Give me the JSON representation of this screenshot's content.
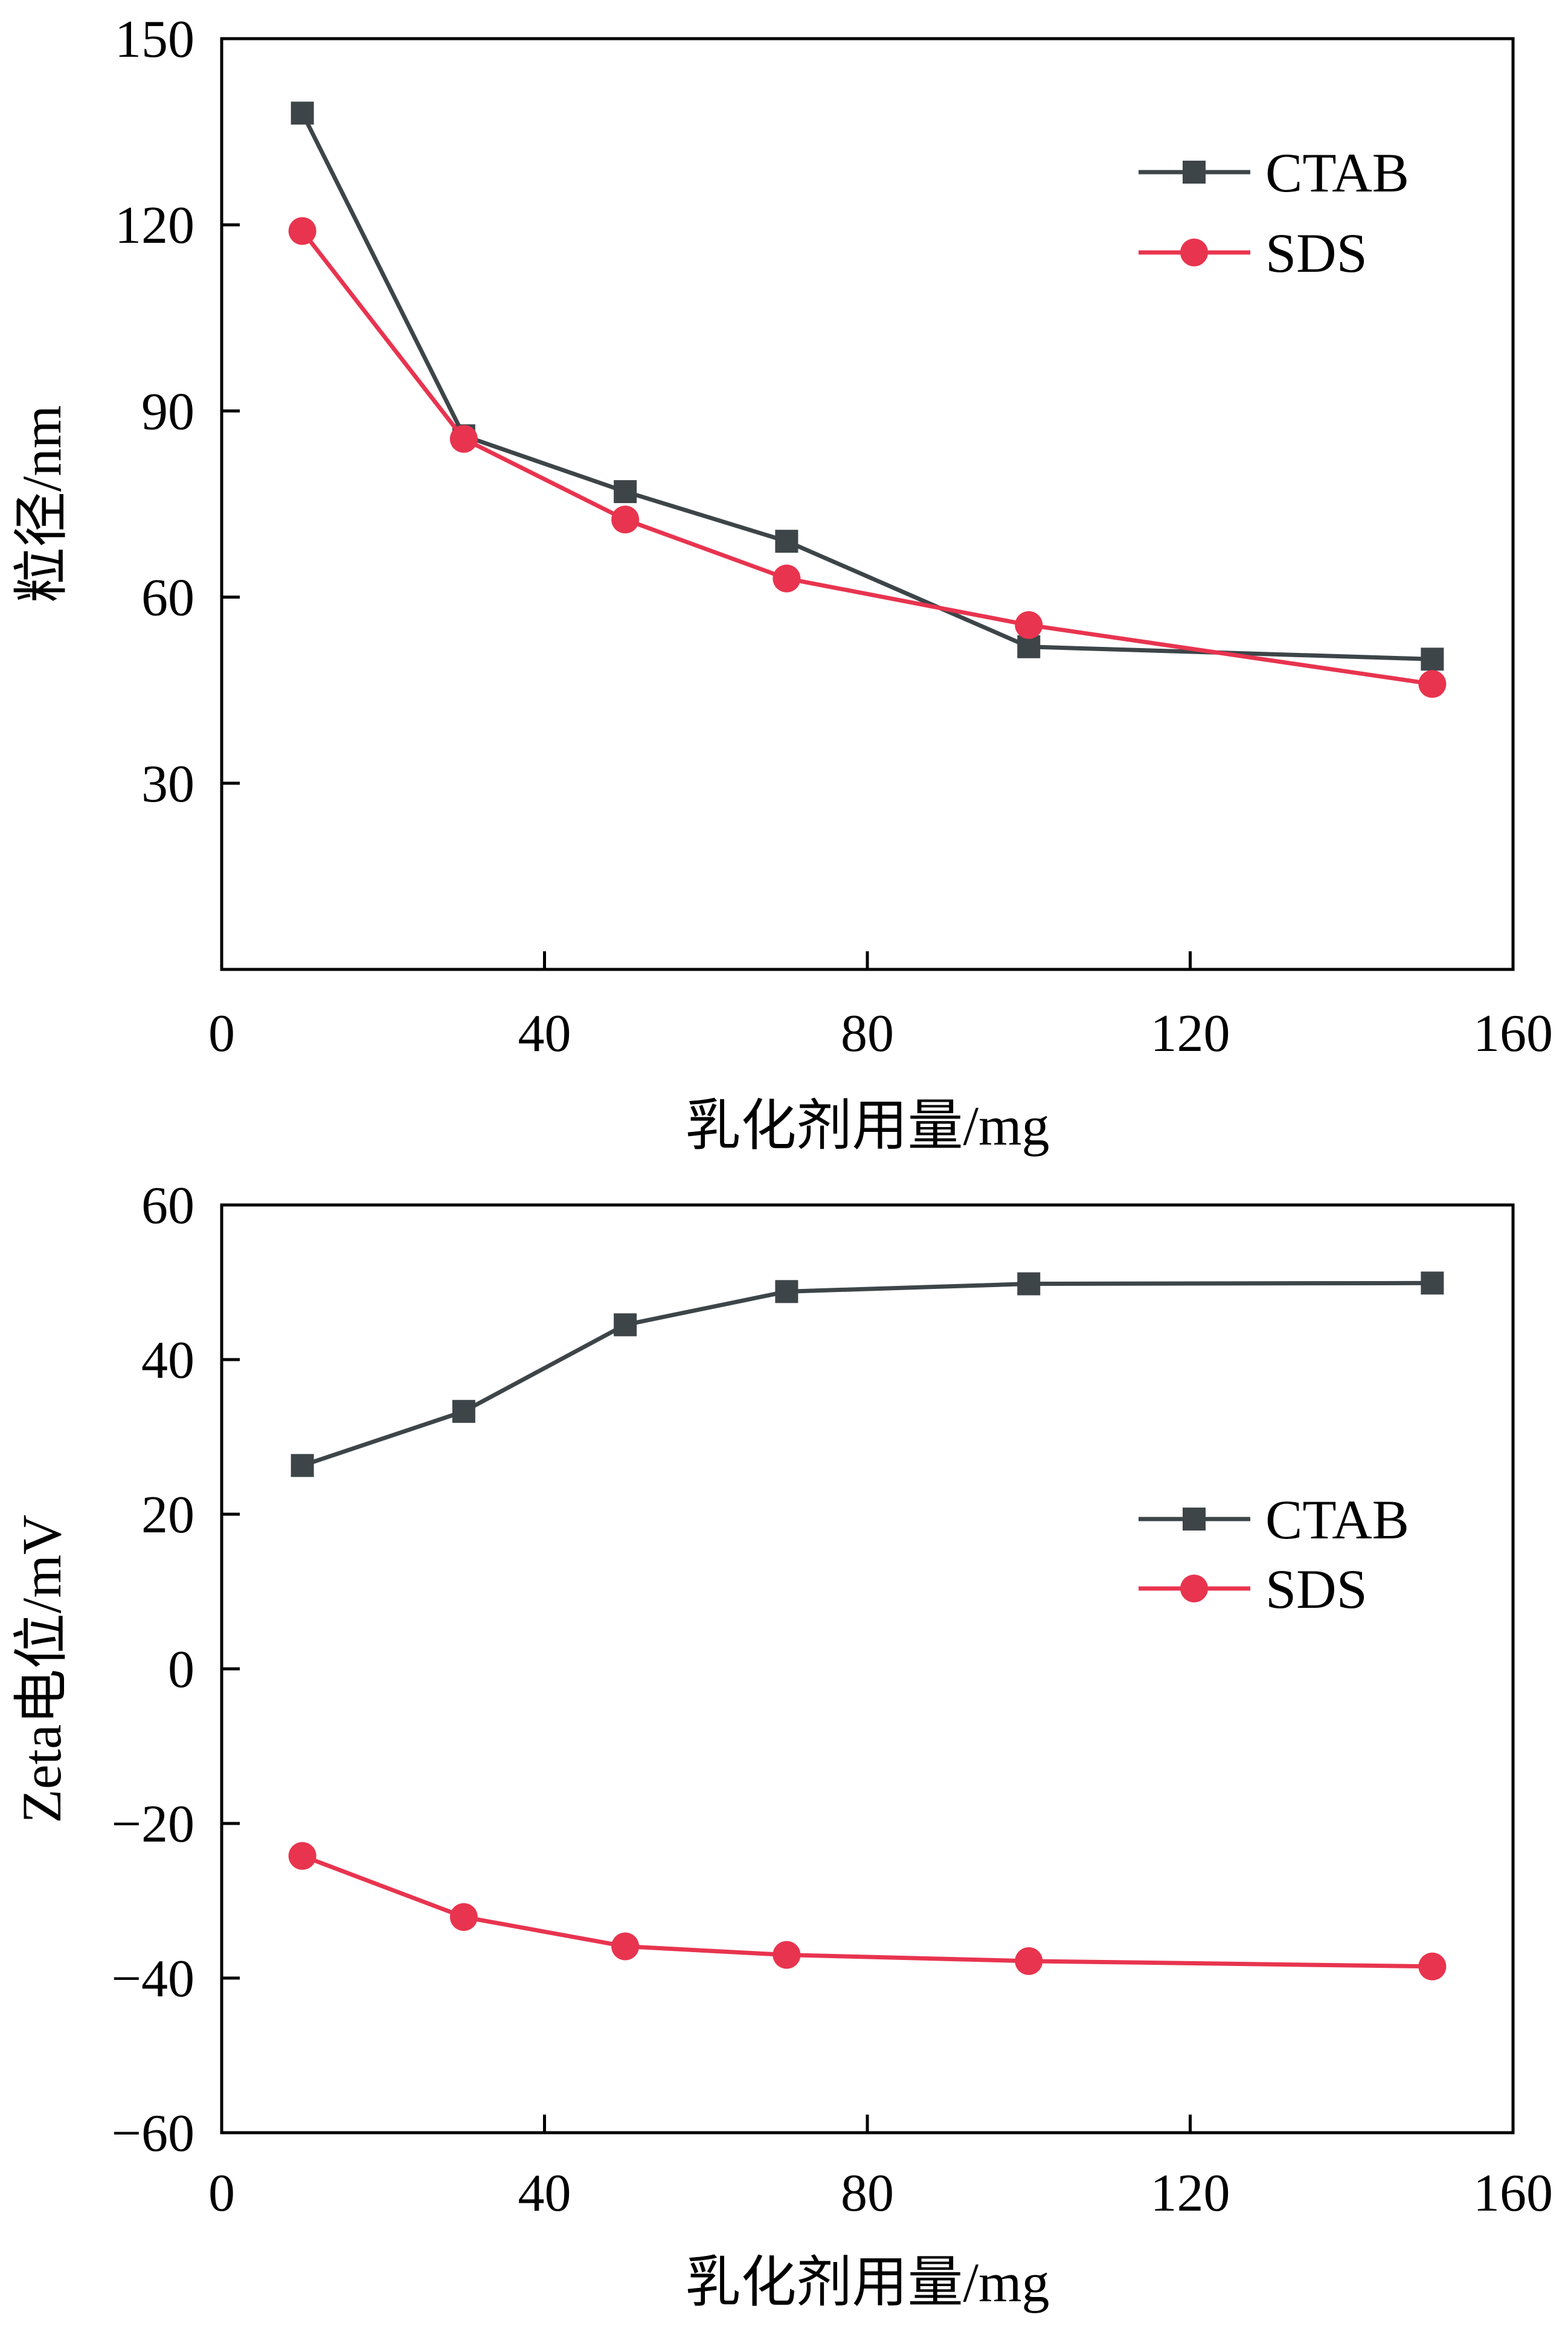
{
  "colors": {
    "CTAB": "#3d4549",
    "SDS": "#e8344f",
    "axis": "#000000"
  },
  "chart_data": [
    {
      "type": "line",
      "title": "",
      "xlabel": "乳化剂用量/mg",
      "ylabel": "粒径/nm",
      "xlim": [
        0,
        160
      ],
      "ylim": [
        0,
        150
      ],
      "xticks": [
        0,
        40,
        80,
        120,
        160
      ],
      "yticks": [
        30,
        60,
        90,
        120,
        150
      ],
      "grid": false,
      "legend_position": "top-right",
      "series": [
        {
          "name": "CTAB",
          "marker": "square",
          "color": "#3d4549",
          "x": [
            10,
            30,
            50,
            70,
            100,
            150
          ],
          "y": [
            138,
            86,
            77,
            69,
            52,
            50
          ]
        },
        {
          "name": "SDS",
          "marker": "circle",
          "color": "#e8344f",
          "x": [
            10,
            30,
            50,
            70,
            100,
            150
          ],
          "y": [
            119,
            85.5,
            72.5,
            63,
            55.5,
            46
          ]
        }
      ]
    },
    {
      "type": "line",
      "title": "",
      "xlabel": "乳化剂用量/mg",
      "ylabel": "Zeta电位/mV",
      "xlim": [
        0,
        160
      ],
      "ylim": [
        -60,
        60
      ],
      "xticks": [
        0,
        40,
        80,
        120,
        160
      ],
      "yticks": [
        -60,
        -40,
        -20,
        0,
        20,
        40,
        60
      ],
      "grid": false,
      "legend_position": "right",
      "series": [
        {
          "name": "CTAB",
          "marker": "square",
          "color": "#3d4549",
          "x": [
            10,
            30,
            50,
            70,
            100,
            150
          ],
          "y": [
            26.3,
            33.3,
            44.5,
            48.8,
            49.8,
            49.9
          ]
        },
        {
          "name": "SDS",
          "marker": "circle",
          "color": "#e8344f",
          "x": [
            10,
            30,
            50,
            70,
            100,
            150
          ],
          "y": [
            -24.2,
            -32.1,
            -35.9,
            -37.0,
            -37.8,
            -38.5
          ]
        }
      ]
    }
  ]
}
